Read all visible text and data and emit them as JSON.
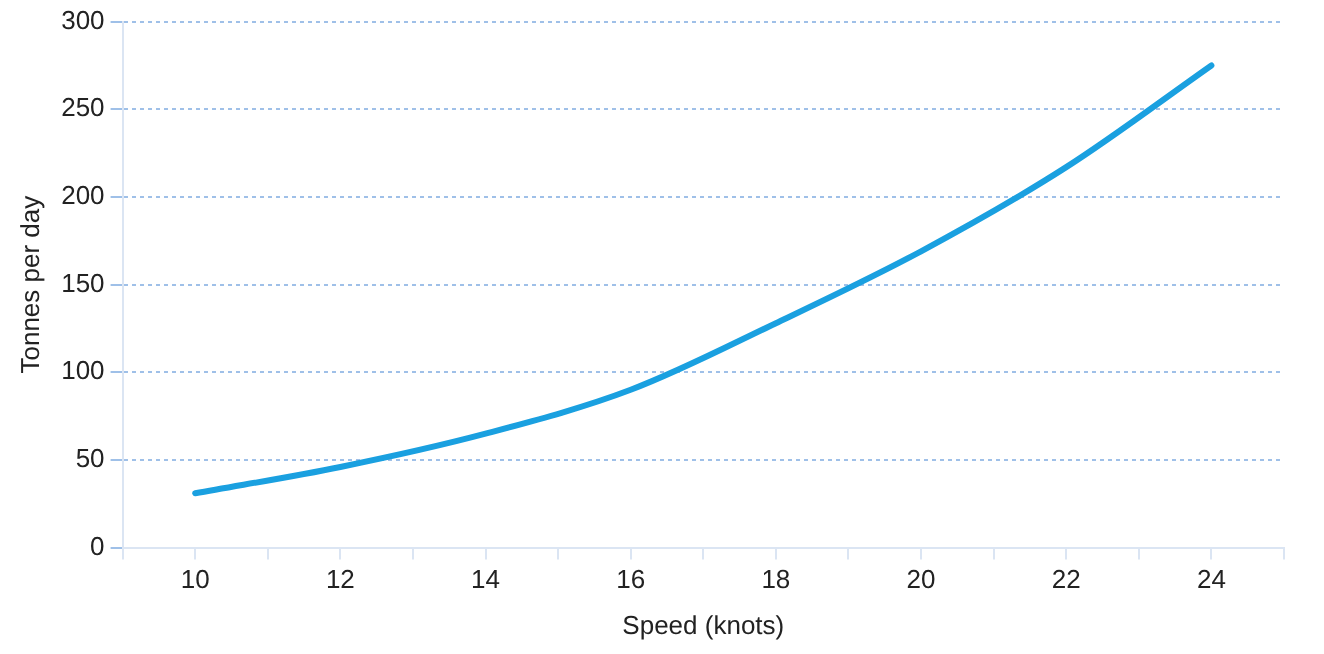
{
  "chart_data": {
    "type": "line",
    "xlabel": "Speed (knots)",
    "ylabel": "Tonnes per day",
    "x": [
      10,
      12,
      14,
      16,
      18,
      20,
      22,
      24
    ],
    "series": [
      {
        "color": "#1aa0e0",
        "values": [
          31,
          46,
          65,
          90,
          128,
          169,
          217,
          275
        ]
      }
    ],
    "xlim": [
      9,
      25
    ],
    "xticks": [
      {
        "value": 9,
        "label": null
      },
      10,
      {
        "value": 11,
        "label": null
      },
      12,
      {
        "value": 13,
        "label": null
      },
      14,
      {
        "value": 15,
        "label": null
      },
      16,
      {
        "value": 17,
        "label": null
      },
      18,
      {
        "value": 19,
        "label": null
      },
      20,
      {
        "value": 21,
        "label": null
      },
      22,
      {
        "value": 23,
        "label": null
      },
      24,
      {
        "value": 25,
        "label": null
      }
    ],
    "ylim": [
      0,
      300
    ],
    "yticks": [
      0,
      50,
      100,
      150,
      200,
      250,
      300
    ],
    "grid": "y",
    "legend": false,
    "marker": "none",
    "line_style": "solid"
  }
}
